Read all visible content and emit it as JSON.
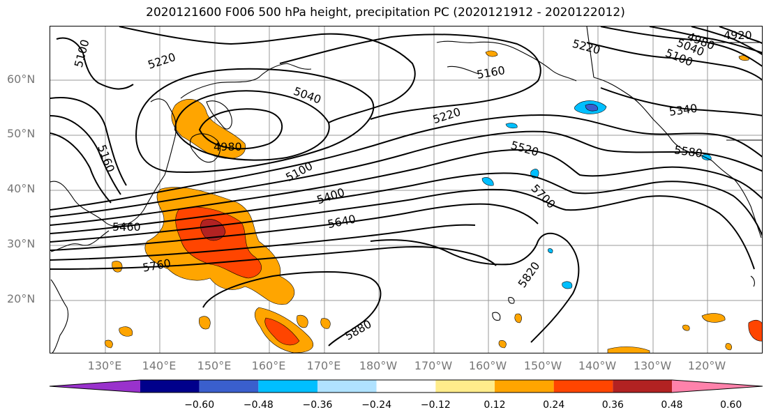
{
  "title": "2020121600 F006 500 hPa height, precipitation PC (2020121912 - 2020122012)",
  "lat_labels": [
    "60°N",
    "50°N",
    "40°N",
    "30°N",
    "20°N"
  ],
  "lon_labels": [
    "130°E",
    "140°E",
    "150°E",
    "160°E",
    "170°E",
    "180°W",
    "170°W",
    "160°W",
    "150°W",
    "140°W",
    "130°W",
    "120°W"
  ],
  "contour_labels": [
    "5100",
    "5220",
    "5040",
    "4980",
    "5160",
    "5100",
    "5460",
    "5760",
    "5400",
    "5640",
    "5220",
    "5520",
    "5700",
    "5820",
    "5880",
    "5220",
    "5160",
    "5100",
    "5040",
    "4980",
    "4920",
    "5340",
    "5580"
  ],
  "colorbar": {
    "ticks": [
      "−0.60",
      "−0.48",
      "−0.36",
      "−0.24",
      "−0.12",
      "0.12",
      "0.24",
      "0.36",
      "0.48",
      "0.60"
    ],
    "colors": [
      "#9932cc",
      "#00008b",
      "#3a5fcd",
      "#00bfff",
      "#b0e2ff",
      "#ffffff",
      "#ffec8b",
      "#ffa500",
      "#ff4500",
      "#b22222",
      "#ff82ab"
    ]
  },
  "colors": {
    "contour": "#000000",
    "grid": "#999999",
    "coast": "#000000"
  }
}
